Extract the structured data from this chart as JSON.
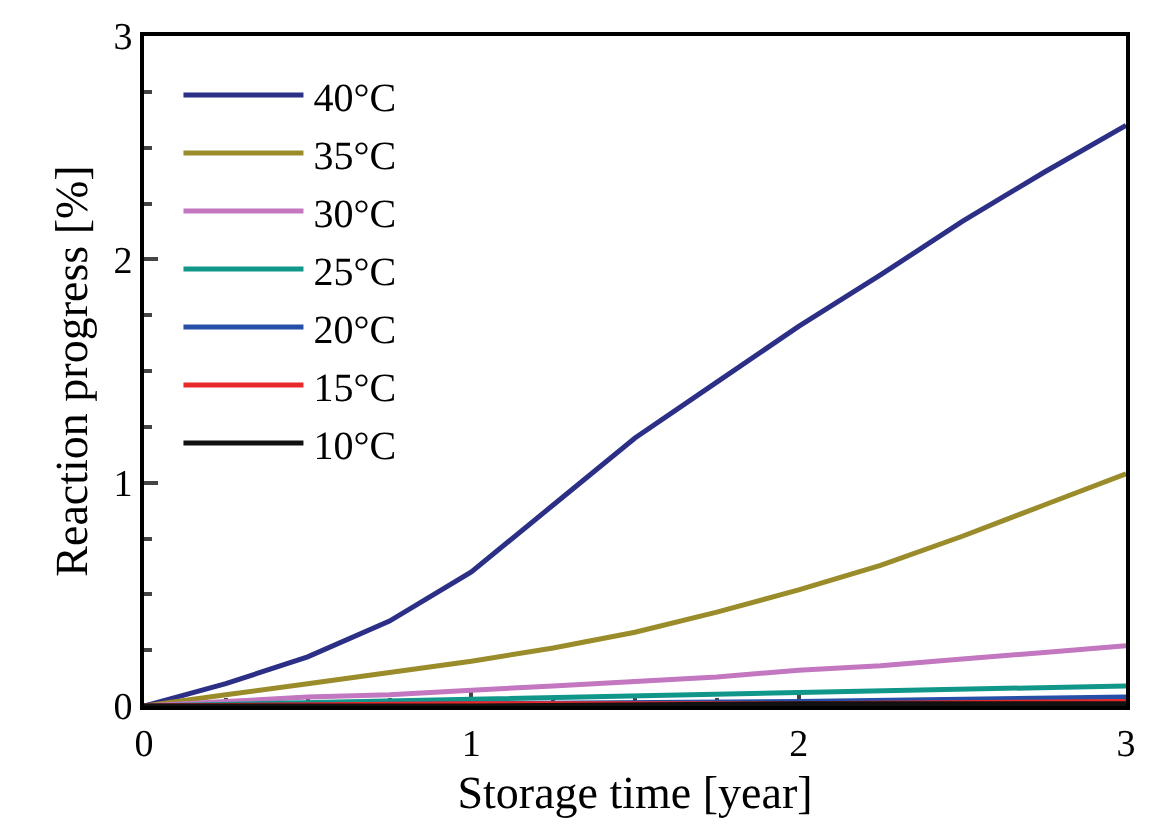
{
  "chart_data": {
    "type": "line",
    "xlabel": "Storage time [year]",
    "ylabel": "Reaction progress [%]",
    "x": [
      0,
      0.25,
      0.5,
      0.75,
      1,
      1.25,
      1.5,
      1.75,
      2,
      2.25,
      2.5,
      2.75,
      3
    ],
    "xlim": [
      0,
      3
    ],
    "xticks": [
      0,
      1,
      2,
      3
    ],
    "ylim": [
      0,
      3
    ],
    "yticks": [
      0,
      1,
      2,
      3
    ],
    "grid": false,
    "legend": "top left",
    "marker": "none",
    "line_style": "solid",
    "series": [
      {
        "name": "40°C",
        "color": "#2b2f86",
        "values": [
          0,
          0.1,
          0.22,
          0.38,
          0.6,
          0.9,
          1.2,
          1.45,
          1.7,
          1.93,
          2.17,
          2.39,
          2.6
        ]
      },
      {
        "name": "35°C",
        "color": "#9a8c2a",
        "values": [
          0,
          0.05,
          0.1,
          0.15,
          0.2,
          0.26,
          0.33,
          0.42,
          0.52,
          0.63,
          0.76,
          0.9,
          1.04
        ]
      },
      {
        "name": "30°C",
        "color": "#c277c0",
        "values": [
          0,
          0.02,
          0.04,
          0.05,
          0.07,
          0.09,
          0.11,
          0.13,
          0.16,
          0.18,
          0.21,
          0.24,
          0.27
        ]
      },
      {
        "name": "25°C",
        "color": "#11968a",
        "x": [
          0,
          1,
          2,
          3
        ],
        "values": [
          0,
          0.03,
          0.06,
          0.09
        ]
      },
      {
        "name": "20°C",
        "color": "#2650a8",
        "x": [
          0,
          1,
          2,
          3
        ],
        "values": [
          0,
          0.01,
          0.02,
          0.04
        ]
      },
      {
        "name": "15°C",
        "color": "#e8292a",
        "x": [
          0,
          1,
          2,
          3
        ],
        "values": [
          0,
          0.01,
          0.01,
          0.02
        ]
      },
      {
        "name": "10°C",
        "color": "#111111",
        "x": [
          0,
          1,
          2,
          3
        ],
        "values": [
          0,
          0,
          0.01,
          0.01
        ]
      }
    ]
  }
}
